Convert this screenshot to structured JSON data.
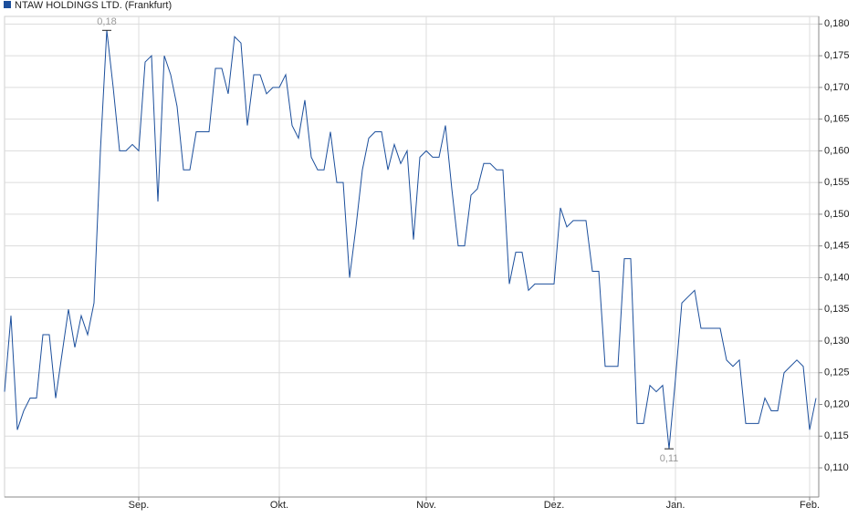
{
  "chart_data": {
    "type": "line",
    "legend": "top-left",
    "grid": true,
    "series": [
      {
        "name": "NTAW HOLDINGS LTD. (Frankfurt)",
        "color": "#1c4f9c",
        "values": [
          0.122,
          0.134,
          0.116,
          0.119,
          0.121,
          0.121,
          0.131,
          0.131,
          0.121,
          0.128,
          0.135,
          0.129,
          0.134,
          0.131,
          0.136,
          0.16,
          0.179,
          0.17,
          0.16,
          0.16,
          0.161,
          0.16,
          0.174,
          0.175,
          0.152,
          0.175,
          0.172,
          0.167,
          0.157,
          0.157,
          0.163,
          0.163,
          0.163,
          0.173,
          0.173,
          0.169,
          0.178,
          0.177,
          0.164,
          0.172,
          0.172,
          0.169,
          0.17,
          0.17,
          0.172,
          0.164,
          0.162,
          0.168,
          0.159,
          0.157,
          0.157,
          0.163,
          0.155,
          0.155,
          0.14,
          0.148,
          0.157,
          0.162,
          0.163,
          0.163,
          0.157,
          0.161,
          0.158,
          0.16,
          0.146,
          0.159,
          0.16,
          0.159,
          0.159,
          0.164,
          0.154,
          0.145,
          0.145,
          0.153,
          0.154,
          0.158,
          0.158,
          0.157,
          0.157,
          0.139,
          0.144,
          0.144,
          0.138,
          0.139,
          0.139,
          0.139,
          0.139,
          0.151,
          0.148,
          0.149,
          0.149,
          0.149,
          0.141,
          0.141,
          0.126,
          0.126,
          0.126,
          0.143,
          0.143,
          0.117,
          0.117,
          0.123,
          0.122,
          0.123,
          0.113,
          0.124,
          0.136,
          0.137,
          0.138,
          0.132,
          0.132,
          0.132,
          0.132,
          0.127,
          0.126,
          0.127,
          0.117,
          0.117,
          0.117,
          0.121,
          0.119,
          0.119,
          0.125,
          0.126,
          0.127,
          0.126,
          0.116,
          0.121
        ]
      }
    ],
    "categories": [
      null,
      null,
      null,
      null,
      null,
      null,
      null,
      null,
      null,
      null,
      null,
      null,
      null,
      null,
      null,
      null,
      null,
      null,
      null,
      null,
      null,
      "Sep.",
      null,
      null,
      null,
      null,
      null,
      null,
      null,
      null,
      null,
      null,
      null,
      null,
      null,
      null,
      null,
      null,
      null,
      null,
      null,
      null,
      null,
      "Okt.",
      null,
      null,
      null,
      null,
      null,
      null,
      null,
      null,
      null,
      null,
      null,
      null,
      null,
      null,
      null,
      null,
      null,
      null,
      null,
      null,
      null,
      null,
      "Nov.",
      null,
      null,
      null,
      null,
      null,
      null,
      null,
      null,
      null,
      null,
      null,
      null,
      null,
      null,
      null,
      null,
      null,
      null,
      null,
      "Dez.",
      null,
      null,
      null,
      null,
      null,
      null,
      null,
      null,
      null,
      null,
      null,
      null,
      null,
      null,
      null,
      null,
      null,
      null,
      "Jan.",
      null,
      null,
      null,
      null,
      null,
      null,
      null,
      null,
      null,
      null,
      null,
      null,
      null,
      null,
      null,
      null,
      null,
      null,
      null,
      null,
      "Feb.",
      null
    ],
    "max_label": "0,18",
    "min_label": "0,11",
    "ylim": [
      0.1054,
      0.1812
    ],
    "yticks": [
      {
        "value": 0.11,
        "label": "0,110"
      },
      {
        "value": 0.115,
        "label": "0,115"
      },
      {
        "value": 0.12,
        "label": "0,120"
      },
      {
        "value": 0.125,
        "label": "0,125"
      },
      {
        "value": 0.13,
        "label": "0,130"
      },
      {
        "value": 0.135,
        "label": "0,135"
      },
      {
        "value": 0.14,
        "label": "0,140"
      },
      {
        "value": 0.145,
        "label": "0,145"
      },
      {
        "value": 0.15,
        "label": "0,150"
      },
      {
        "value": 0.155,
        "label": "0,155"
      },
      {
        "value": 0.16,
        "label": "0,160"
      },
      {
        "value": 0.165,
        "label": "0,165"
      },
      {
        "value": 0.17,
        "label": "0,170"
      },
      {
        "value": 0.175,
        "label": "0,175"
      },
      {
        "value": 0.18,
        "label": "0,180"
      }
    ]
  }
}
